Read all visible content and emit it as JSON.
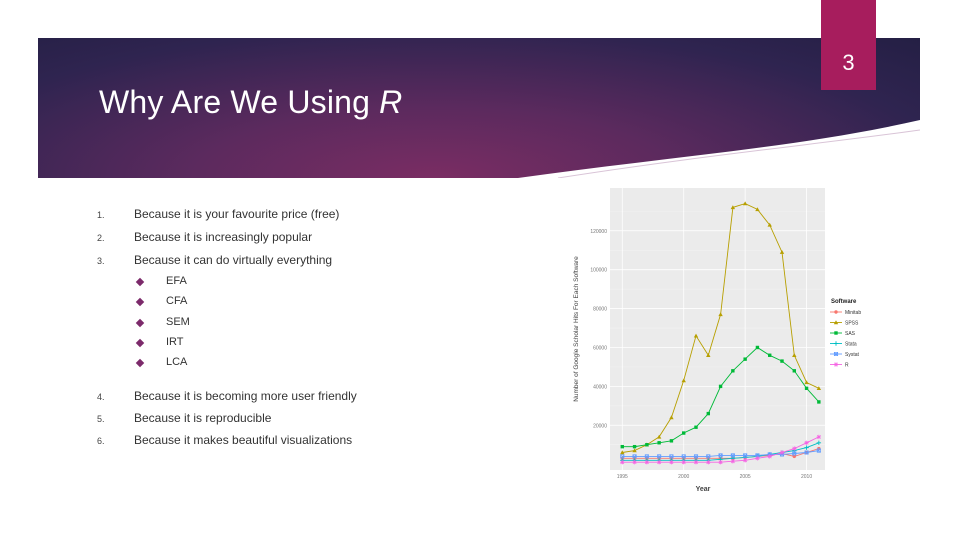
{
  "slide": {
    "page_number": "3",
    "title_main": "Why Are We Using",
    "title_r": "R"
  },
  "colors": {
    "banner_dark": "#241f44",
    "banner_purple": "#7a2d63",
    "page_tab": "#a71d5d",
    "bullet": "#7c2a6b"
  },
  "list": {
    "items": [
      {
        "num": "1.",
        "text": "Because it is your favourite price (free)"
      },
      {
        "num": "2.",
        "text": "Because it is increasingly popular"
      },
      {
        "num": "3.",
        "text": "Because it can do virtually everything"
      },
      {
        "num": "4.",
        "text": "Because it is becoming more user friendly"
      },
      {
        "num": "5.",
        "text": "Because it is reproducible"
      },
      {
        "num": "6.",
        "text": "Because it makes beautiful visualizations"
      }
    ],
    "subitems": [
      "EFA",
      "CFA",
      "SEM",
      "IRT",
      "LCA"
    ]
  },
  "chart_data": {
    "type": "line",
    "title": "",
    "xlabel": "Year",
    "ylabel": "Number of Google Scholar Hits For Each Software",
    "xlim": [
      1994,
      2011.5
    ],
    "ylim": [
      -3000,
      142000
    ],
    "x_ticks": [
      "1995",
      "2000",
      "2005",
      "2010"
    ],
    "y_ticks": [
      "20000",
      "40000",
      "60000",
      "80000",
      "100000",
      "120000"
    ],
    "legend_title": "Software",
    "legend_position": "right",
    "grid": true,
    "x": [
      1995,
      1996,
      1997,
      1998,
      1999,
      2000,
      2001,
      2002,
      2003,
      2004,
      2005,
      2006,
      2007,
      2008,
      2009,
      2010,
      2011
    ],
    "series": [
      {
        "name": "Minitab",
        "color": "#f8766d",
        "marker": "circle",
        "values": [
          3000,
          3000,
          3000,
          3000,
          3000,
          3000,
          3000,
          3000,
          3000,
          3000,
          3500,
          4000,
          4500,
          5500,
          4000,
          6000,
          8000
        ]
      },
      {
        "name": "SPSS",
        "color": "#b79f00",
        "marker": "triangle",
        "values": [
          6000,
          7000,
          10000,
          14000,
          24000,
          43000,
          66000,
          56000,
          77000,
          132000,
          134000,
          131000,
          123000,
          109000,
          56000,
          42000,
          39000
        ]
      },
      {
        "name": "SAS",
        "color": "#00ba38",
        "marker": "square",
        "values": [
          9000,
          9000,
          10000,
          11000,
          12000,
          16000,
          19000,
          26000,
          40000,
          48000,
          54000,
          60000,
          56000,
          53000,
          48000,
          39000,
          32000
        ]
      },
      {
        "name": "Stata",
        "color": "#00bfc4",
        "marker": "plus",
        "values": [
          2000,
          2000,
          2000,
          2000,
          2000,
          2000,
          2000,
          2000,
          2500,
          3000,
          3500,
          4000,
          5000,
          6000,
          7000,
          8500,
          11000
        ]
      },
      {
        "name": "Systat",
        "color": "#619cff",
        "marker": "boxx",
        "values": [
          4000,
          4000,
          4000,
          4000,
          4000,
          4000,
          4000,
          4000,
          4500,
          4500,
          4500,
          4500,
          5000,
          5000,
          5500,
          6000,
          7000
        ]
      },
      {
        "name": "R",
        "color": "#f564e3",
        "marker": "star",
        "values": [
          1000,
          1000,
          1000,
          1000,
          1000,
          1000,
          1000,
          1000,
          1000,
          1500,
          2000,
          3000,
          4000,
          6000,
          8000,
          11000,
          14000
        ]
      }
    ]
  }
}
